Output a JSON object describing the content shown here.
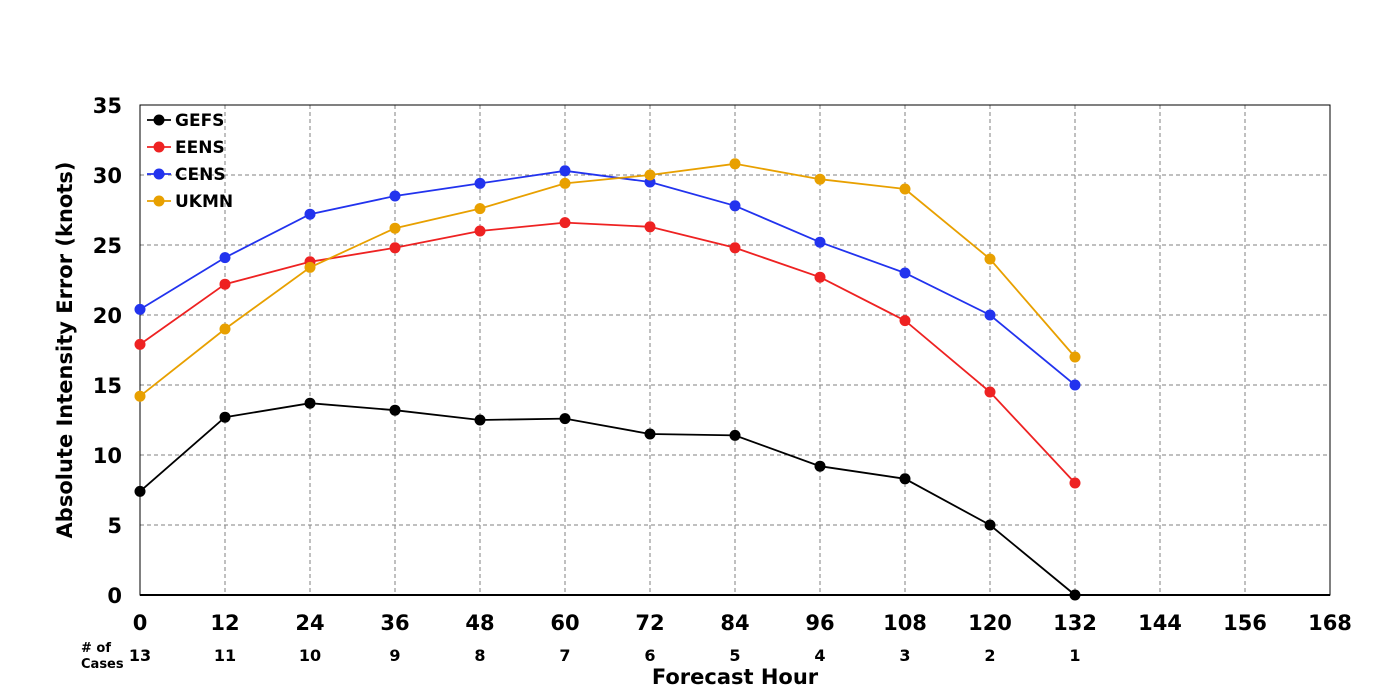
{
  "chart_data": {
    "type": "line",
    "xlabel": "Forecast Hour",
    "ylabel": "Absolute Intensity Error (knots)",
    "xlim": [
      0,
      168
    ],
    "ylim": [
      0,
      35
    ],
    "x_ticks": [
      "0",
      "12",
      "24",
      "36",
      "48",
      "60",
      "72",
      "84",
      "96",
      "108",
      "120",
      "132",
      "144",
      "156",
      "168"
    ],
    "y_ticks": [
      "0",
      "5",
      "10",
      "15",
      "20",
      "25",
      "30",
      "35"
    ],
    "grid": true,
    "legend_position": "top-left",
    "cases_label_line1": "# of",
    "cases_label_line2": "Cases",
    "cases": [
      {
        "x": 0,
        "label": "13"
      },
      {
        "x": 12,
        "label": "11"
      },
      {
        "x": 24,
        "label": "10"
      },
      {
        "x": 36,
        "label": "9"
      },
      {
        "x": 48,
        "label": "8"
      },
      {
        "x": 60,
        "label": "7"
      },
      {
        "x": 72,
        "label": "6"
      },
      {
        "x": 84,
        "label": "5"
      },
      {
        "x": 96,
        "label": "4"
      },
      {
        "x": 108,
        "label": "3"
      },
      {
        "x": 120,
        "label": "2"
      },
      {
        "x": 132,
        "label": "1"
      }
    ],
    "x": [
      0,
      12,
      24,
      36,
      48,
      60,
      72,
      84,
      96,
      108,
      120,
      132
    ],
    "series": [
      {
        "name": "GEFS",
        "color": "#000000",
        "values": [
          7.4,
          12.7,
          13.7,
          13.2,
          12.5,
          12.6,
          11.5,
          11.4,
          9.2,
          8.3,
          5.0,
          0.0
        ]
      },
      {
        "name": "EENS",
        "color": "#ee2222",
        "values": [
          17.9,
          22.2,
          23.8,
          24.8,
          26.0,
          26.6,
          26.3,
          24.8,
          22.7,
          19.6,
          14.5,
          8.0
        ]
      },
      {
        "name": "CENS",
        "color": "#2233ee",
        "values": [
          20.4,
          24.1,
          27.2,
          28.5,
          29.4,
          30.3,
          29.5,
          27.8,
          25.2,
          23.0,
          20.0,
          15.0
        ]
      },
      {
        "name": "UKMN",
        "color": "#e8a000",
        "values": [
          14.2,
          19.0,
          23.4,
          26.2,
          27.6,
          29.4,
          30.0,
          30.8,
          29.7,
          29.0,
          24.0,
          17.0
        ]
      }
    ]
  }
}
